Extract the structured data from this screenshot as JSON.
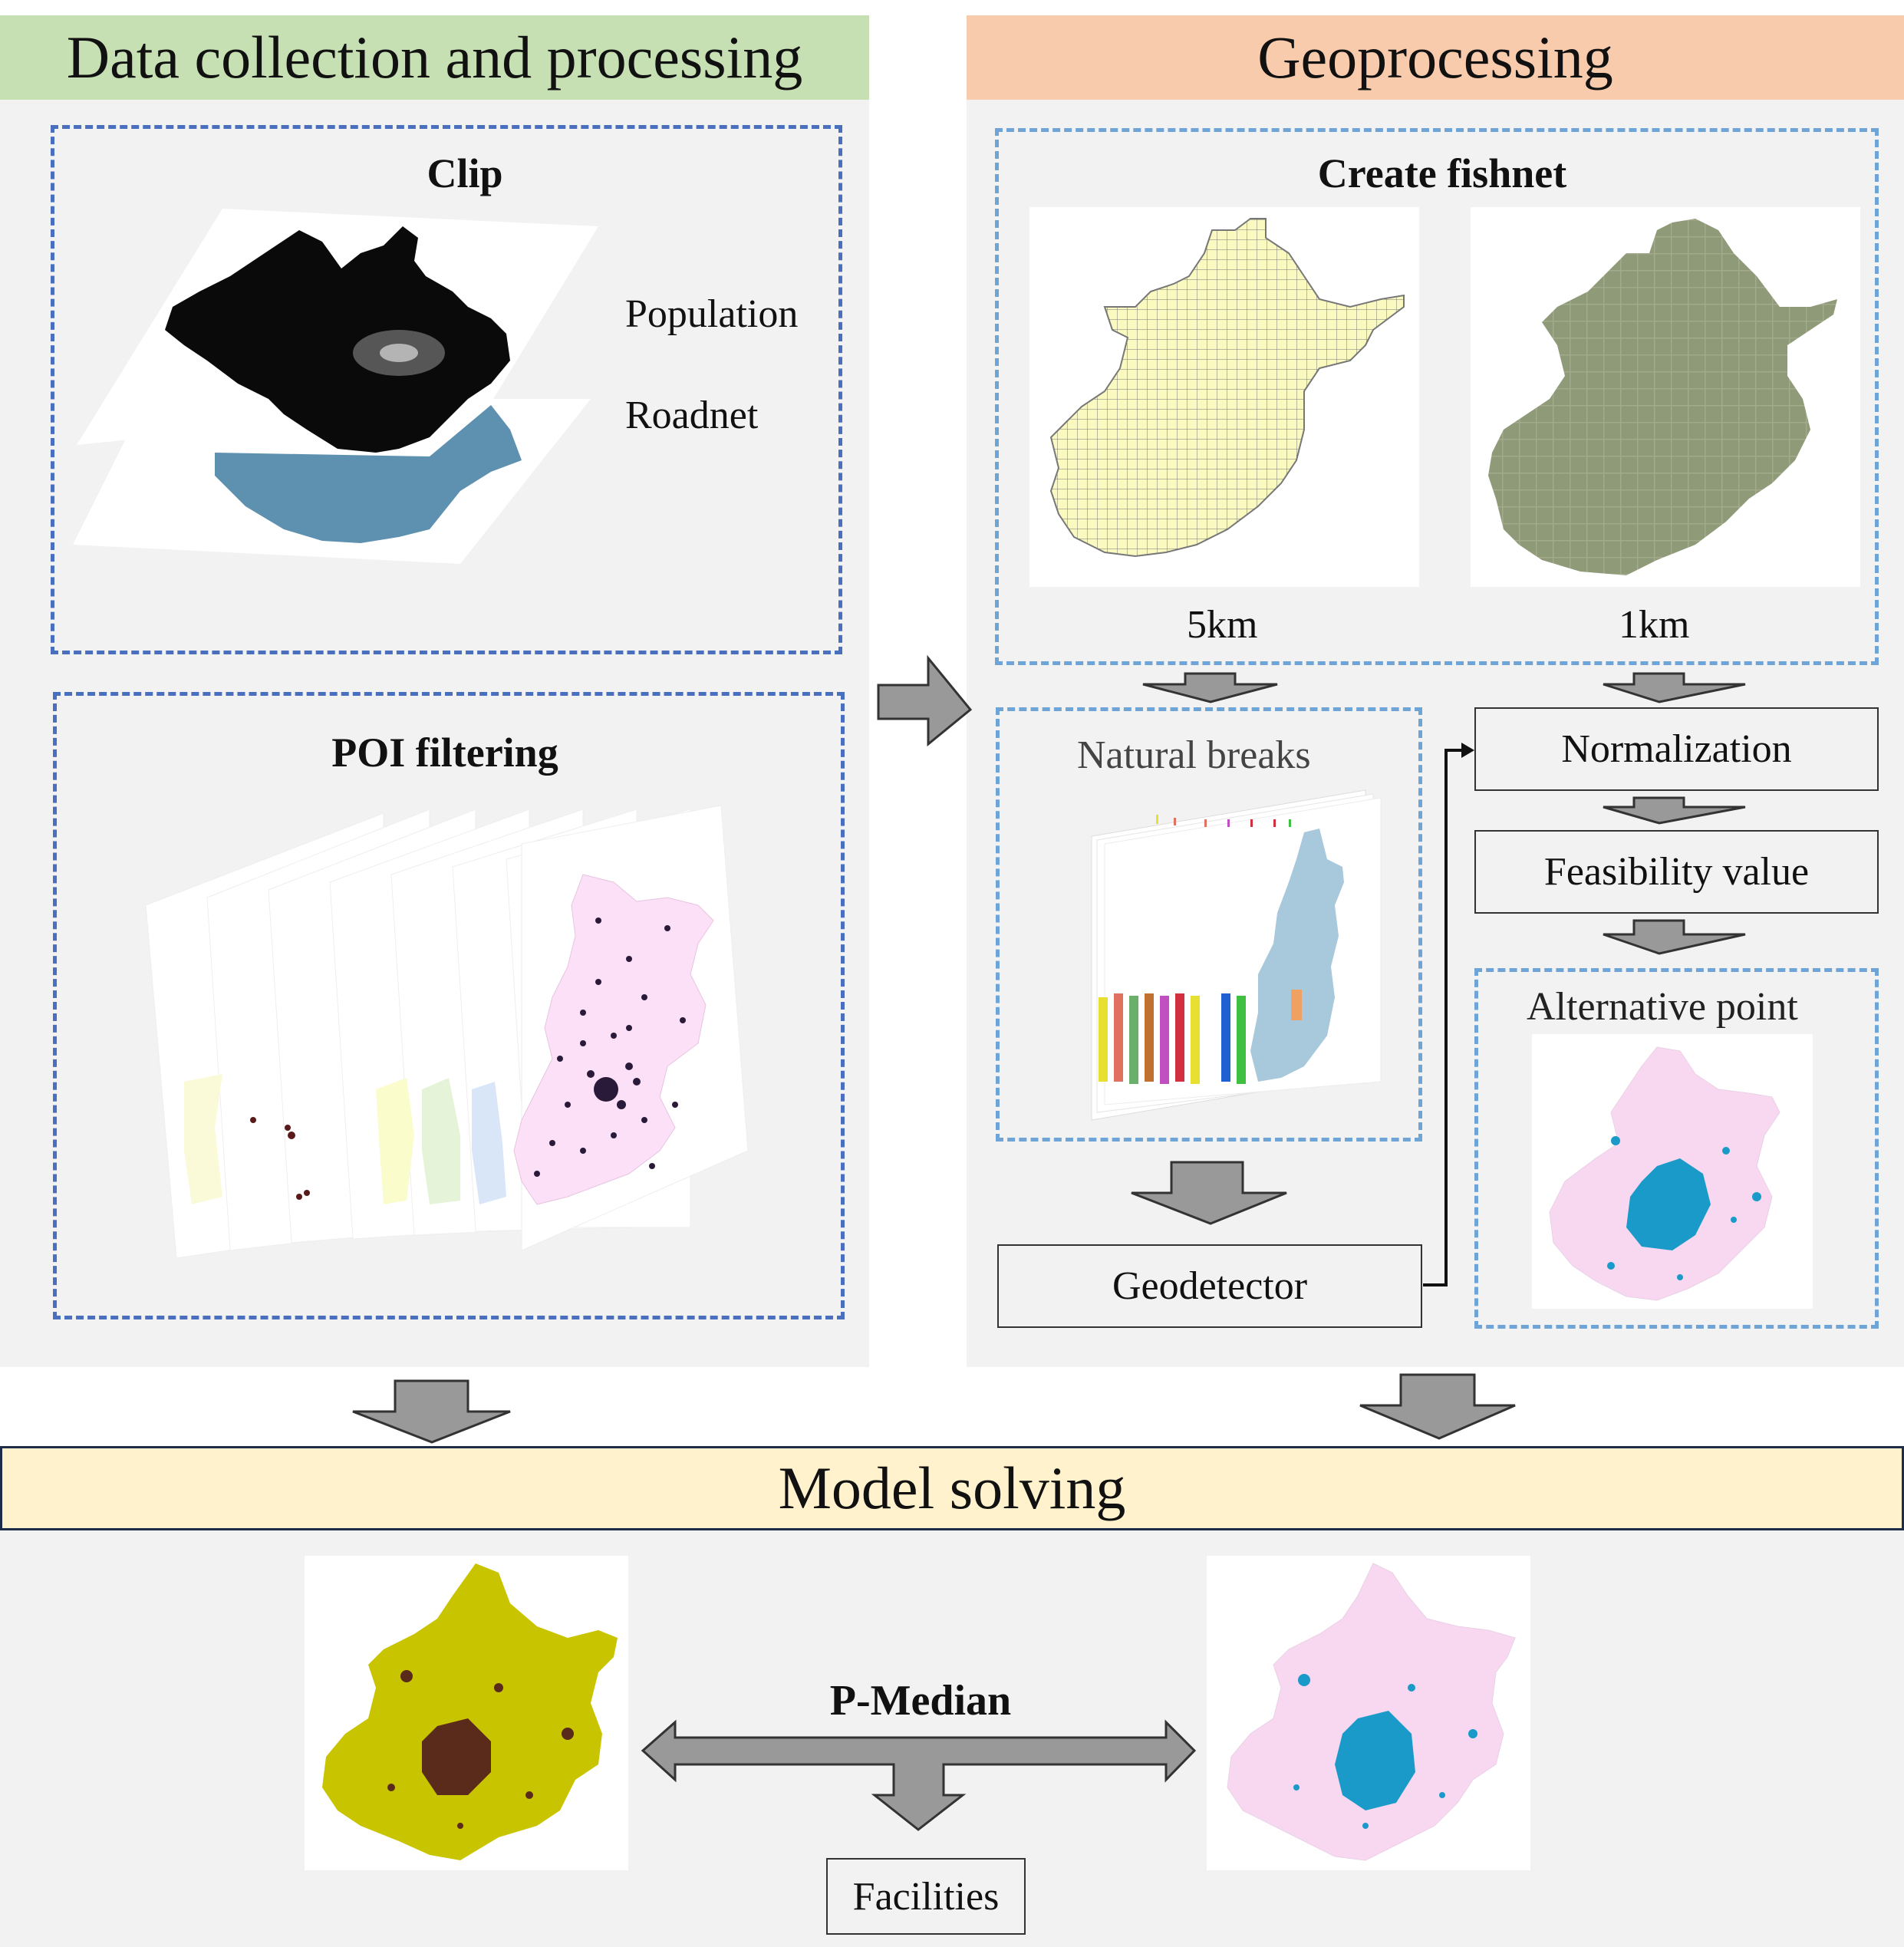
{
  "sections": {
    "data_collection": {
      "title": "Data collection and processing",
      "color": "#c6e0b4"
    },
    "geoprocessing": {
      "title": "Geoprocessing",
      "color": "#f8cbad"
    },
    "model_solving": {
      "title": "Model solving",
      "color": "#fff2cc"
    }
  },
  "clip": {
    "title": "Clip",
    "layers": [
      "Population",
      "Roadnet"
    ]
  },
  "poi": {
    "title": "POI filtering"
  },
  "fishnet": {
    "title": "Create fishnet",
    "grids": [
      "5km",
      "1km"
    ]
  },
  "steps": {
    "natural_breaks": "Natural breaks",
    "normalization": "Normalization",
    "feasibility": "Feasibility value",
    "alternative_point": "Alternative point",
    "geodetector": "Geodetector"
  },
  "model": {
    "method": "P-Median",
    "output": "Facilities"
  },
  "colors": {
    "arrow_fill": "#999999",
    "dash_dark": "#4a6fbe",
    "dash_light": "#6fa4d6",
    "fishnet_yellow": "#fafac0",
    "fishnet_olive": "#8f9a78",
    "map_pink": "#f8d8f0",
    "point_blue": "#1a9ac8",
    "pop_olive": "#c8c400",
    "pop_dark": "#5a2a1a"
  }
}
